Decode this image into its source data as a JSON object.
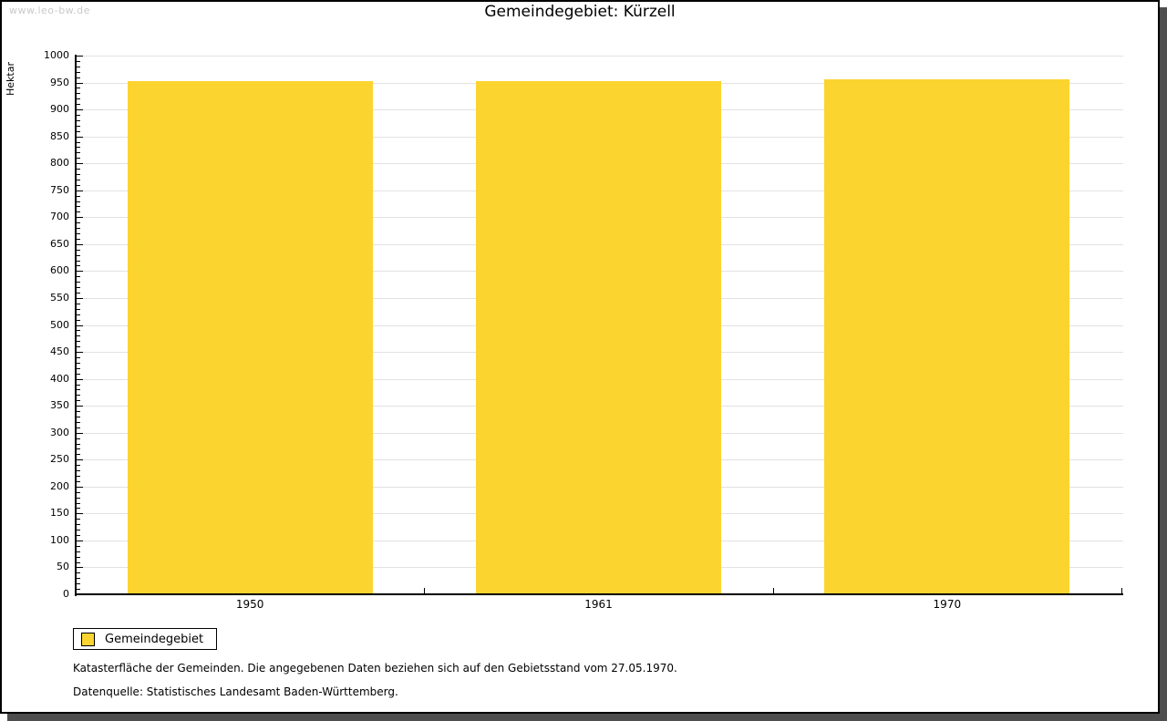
{
  "watermark": "www.leo-bw.de",
  "title": "Gemeindegebiet: Kürzell",
  "chart_data": {
    "type": "bar",
    "title": "Gemeindegebiet: Kürzell",
    "categories": [
      "1950",
      "1961",
      "1970"
    ],
    "series": [
      {
        "name": "Gemeindegebiet",
        "values": [
          952,
          952,
          956
        ],
        "color": "#FCD42F"
      }
    ],
    "xlabel": "",
    "ylabel": "Hektar",
    "ylim": [
      0,
      1000
    ],
    "ytick_major": 50,
    "ytick_minor": 10,
    "grid": true,
    "legend_position": "bottom-left"
  },
  "footnotes": [
    "Katasterfläche der Gemeinden. Die angegebenen Daten beziehen sich auf den Gebietsstand vom 27.05.1970.",
    "Datenquelle: Statistisches Landesamt Baden-Württemberg."
  ],
  "colors": {
    "bar": "#FCD42F",
    "grid": "#e2e2e2",
    "axis": "#000000",
    "watermark": "#c9c9c9",
    "panel_shadow": "#4e4e4e"
  }
}
